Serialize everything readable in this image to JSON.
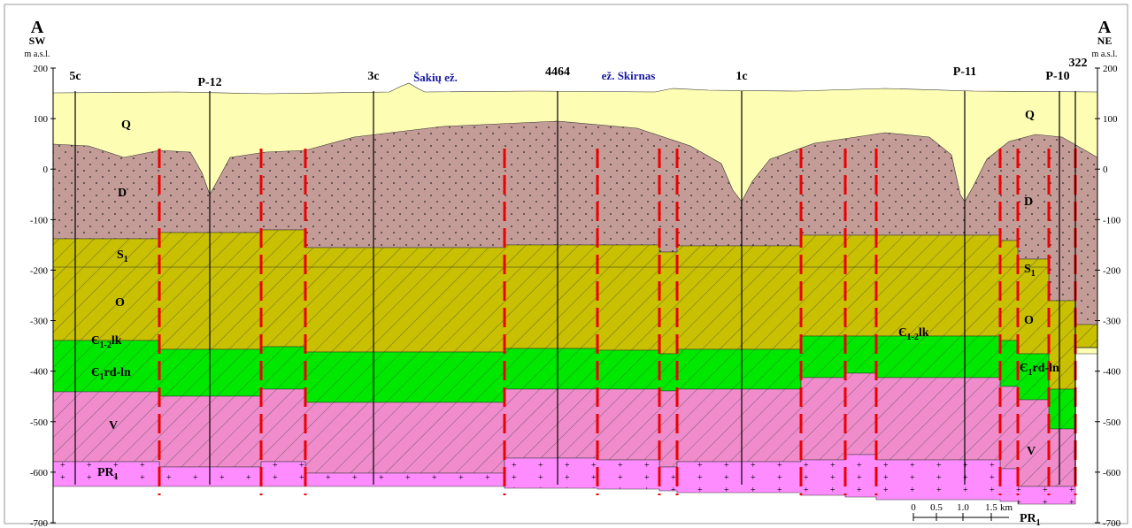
{
  "header": {
    "left": {
      "letter": "A",
      "direction": "SW",
      "unit": "m a.s.l."
    },
    "right": {
      "letter": "A",
      "direction": "NE",
      "unit": "m a.s.l."
    }
  },
  "axis": {
    "ticks": [
      200,
      100,
      0,
      -100,
      -200,
      -300,
      -400,
      -500,
      -600,
      -700
    ]
  },
  "wells": [
    "5c",
    "P-12",
    "3c",
    "4464",
    "1c",
    "P-11",
    "P-10",
    "322"
  ],
  "lakes": [
    "Šakių ež.",
    "ež. Skirnas"
  ],
  "layers_left": [
    {
      "symbol": "Q"
    },
    {
      "symbol": "D"
    },
    {
      "symbol": "S",
      "sub": "1"
    },
    {
      "symbol": "O"
    },
    {
      "symbol": "Є",
      "sub": "1-2",
      "suffix": "lk"
    },
    {
      "symbol": "Є",
      "sub": "1",
      "suffix": "rd-ln"
    },
    {
      "symbol": "V"
    },
    {
      "symbol": "PR",
      "sub": "1"
    }
  ],
  "layers_right": [
    {
      "symbol": "Q"
    },
    {
      "symbol": "D"
    },
    {
      "symbol": "S",
      "sub": "1"
    },
    {
      "symbol": "O"
    },
    {
      "symbol": "Є",
      "sub": "1-2",
      "suffix": "lk"
    },
    {
      "symbol": "Є",
      "sub": "1",
      "suffix": "rd-ln"
    },
    {
      "symbol": "V"
    },
    {
      "symbol": "PR",
      "sub": "1"
    }
  ],
  "scale": {
    "ticks": [
      "0",
      "0.5",
      "1.0",
      "1.5"
    ],
    "unit": "km"
  }
}
